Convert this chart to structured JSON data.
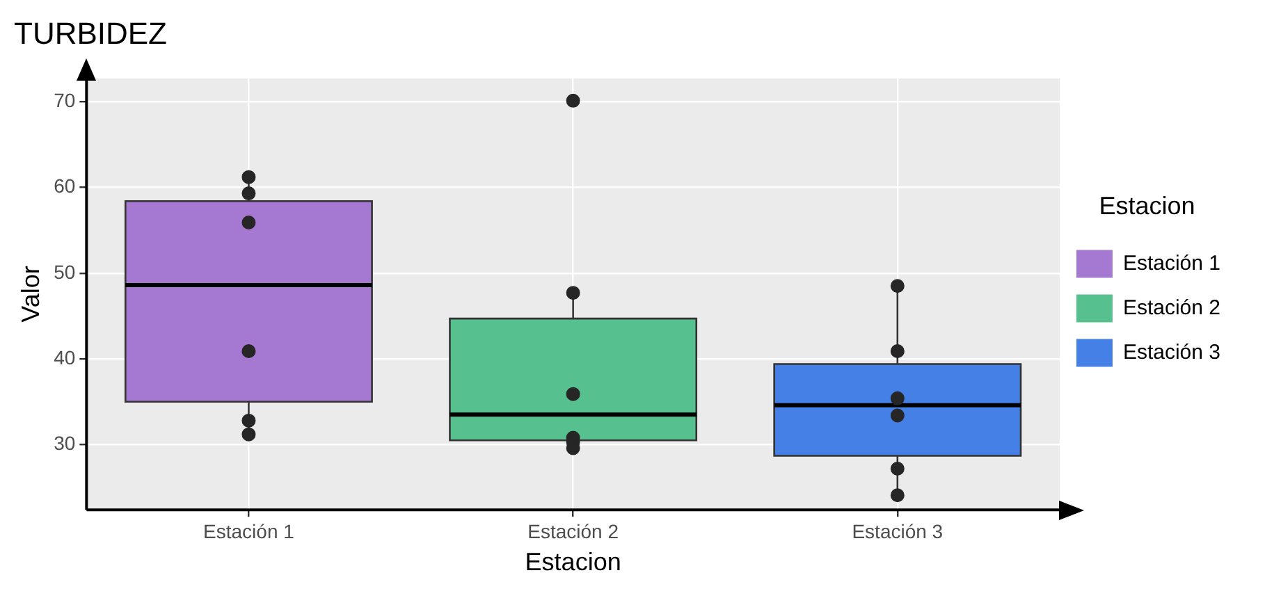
{
  "chart_data": {
    "type": "box",
    "title": "TURBIDEZ",
    "xlabel": "Estacion",
    "ylabel": "Valor",
    "legend_title": "Estacion",
    "legend": "right",
    "grid": true,
    "categories": [
      "Estación 1",
      "Estación 2",
      "Estación 3"
    ],
    "series": [
      {
        "name": "Estación 1",
        "color": "#a578d1",
        "boxes": [
          {
            "low": 31.3,
            "q1": 35.0,
            "median": 48.6,
            "q3": 58.4,
            "high": 61.2
          },
          null,
          null
        ]
      },
      {
        "name": "Estación 2",
        "color": "#57c08f",
        "boxes": [
          null,
          {
            "low": 29.6,
            "q1": 30.5,
            "median": 33.5,
            "q3": 44.7,
            "high": 47.7
          },
          null
        ]
      },
      {
        "name": "Estación 3",
        "color": "#4580e6",
        "boxes": [
          null,
          null,
          {
            "low": 24.1,
            "q1": 28.7,
            "median": 34.6,
            "q3": 39.4,
            "high": 48.5
          }
        ]
      },
      {
        "type": "scatter",
        "color": "#262626",
        "marker": "circle",
        "x": [
          "Estación 1",
          "Estación 1",
          "Estación 1",
          "Estación 1",
          "Estación 1",
          "Estación 1",
          "Estación 2",
          "Estación 2",
          "Estación 2",
          "Estación 2",
          "Estación 2",
          "Estación 2",
          "Estación 3",
          "Estación 3",
          "Estación 3",
          "Estación 3",
          "Estación 3",
          "Estación 3"
        ],
        "values": [
          61.2,
          59.3,
          55.9,
          40.9,
          32.8,
          31.2,
          70.1,
          47.7,
          35.9,
          30.8,
          30.3,
          29.6,
          48.5,
          40.9,
          35.4,
          33.4,
          27.2,
          24.1
        ]
      }
    ],
    "ylim": [
      22.4,
      72.7
    ],
    "yticks": [
      30,
      40,
      50,
      60,
      70
    ]
  }
}
